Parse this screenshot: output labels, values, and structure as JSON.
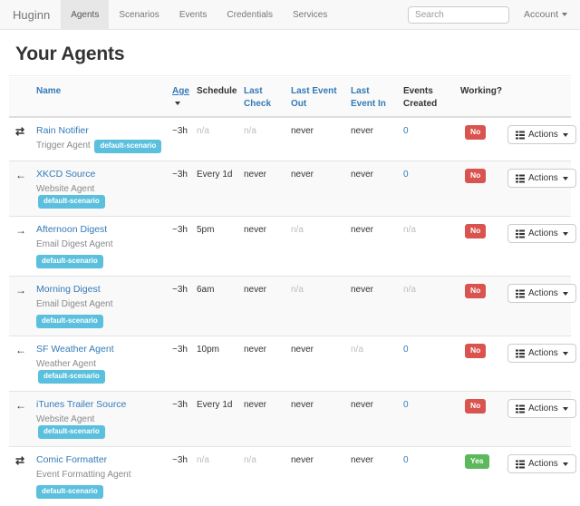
{
  "navbar": {
    "brand": "Huginn",
    "items": [
      {
        "label": "Agents",
        "active": true
      },
      {
        "label": "Scenarios",
        "active": false
      },
      {
        "label": "Events",
        "active": false
      },
      {
        "label": "Credentials",
        "active": false
      },
      {
        "label": "Services",
        "active": false
      }
    ],
    "search_placeholder": "Search",
    "account_label": "Account"
  },
  "page": {
    "title": "Your Agents"
  },
  "icons": {
    "exchange-icon": "⇄",
    "arrow-left-icon": "←",
    "arrow-right-icon": "→",
    "list-icon": "list",
    "caret-down-icon": "caret"
  },
  "colors": {
    "link_blue": "#337ab7",
    "badge_info": "#5bc0de",
    "badge_danger": "#d9534f",
    "badge_success": "#5cb85c",
    "navbar_bg": "#f8f8f8"
  },
  "table": {
    "headers": [
      {
        "label": "Name",
        "style": "link"
      },
      {
        "label": "Age",
        "style": "link",
        "sorted_desc": true
      },
      {
        "label": "Schedule",
        "style": "plain"
      },
      {
        "label": "Last Check",
        "style": "link"
      },
      {
        "label": "Last Event Out",
        "style": "link"
      },
      {
        "label": "Last Event In",
        "style": "link"
      },
      {
        "label": "Events Created",
        "style": "plain"
      },
      {
        "label": "Working?",
        "style": "plain"
      }
    ],
    "actions_label": "Actions",
    "rows": [
      {
        "icon": "exchange-icon",
        "name": "Rain Notifier",
        "type": "Trigger Agent",
        "scenario": "default-scenario",
        "scenario_inline": true,
        "age": {
          "t": "~3h",
          "s": "plain"
        },
        "schedule": {
          "t": "n/a",
          "s": "muted"
        },
        "last_check": {
          "t": "n/a",
          "s": "muted"
        },
        "last_event_out": {
          "t": "never",
          "s": "plain"
        },
        "last_event_in": {
          "t": "never",
          "s": "plain"
        },
        "events_created": {
          "t": "0",
          "s": "link"
        },
        "working": {
          "label": "No",
          "state": "no"
        }
      },
      {
        "icon": "arrow-left-icon",
        "name": "XKCD Source",
        "type": "Website Agent",
        "scenario": "default-scenario",
        "scenario_inline": true,
        "age": {
          "t": "~3h",
          "s": "plain"
        },
        "schedule": {
          "t": "Every 1d",
          "s": "plain"
        },
        "last_check": {
          "t": "never",
          "s": "plain"
        },
        "last_event_out": {
          "t": "never",
          "s": "plain"
        },
        "last_event_in": {
          "t": "never",
          "s": "plain"
        },
        "events_created": {
          "t": "0",
          "s": "link"
        },
        "working": {
          "label": "No",
          "state": "no"
        }
      },
      {
        "icon": "arrow-right-icon",
        "name": "Afternoon Digest",
        "type": "Email Digest Agent",
        "scenario": "default-scenario",
        "scenario_inline": false,
        "age": {
          "t": "~3h",
          "s": "plain"
        },
        "schedule": {
          "t": "5pm",
          "s": "plain"
        },
        "last_check": {
          "t": "never",
          "s": "plain"
        },
        "last_event_out": {
          "t": "n/a",
          "s": "muted"
        },
        "last_event_in": {
          "t": "never",
          "s": "plain"
        },
        "events_created": {
          "t": "n/a",
          "s": "muted"
        },
        "working": {
          "label": "No",
          "state": "no"
        }
      },
      {
        "icon": "arrow-right-icon",
        "name": "Morning Digest",
        "type": "Email Digest Agent",
        "scenario": "default-scenario",
        "scenario_inline": false,
        "age": {
          "t": "~3h",
          "s": "plain"
        },
        "schedule": {
          "t": "6am",
          "s": "plain"
        },
        "last_check": {
          "t": "never",
          "s": "plain"
        },
        "last_event_out": {
          "t": "n/a",
          "s": "muted"
        },
        "last_event_in": {
          "t": "never",
          "s": "plain"
        },
        "events_created": {
          "t": "n/a",
          "s": "muted"
        },
        "working": {
          "label": "No",
          "state": "no"
        }
      },
      {
        "icon": "arrow-left-icon",
        "name": "SF Weather Agent",
        "type": "Weather Agent",
        "scenario": "default-scenario",
        "scenario_inline": true,
        "age": {
          "t": "~3h",
          "s": "plain"
        },
        "schedule": {
          "t": "10pm",
          "s": "plain"
        },
        "last_check": {
          "t": "never",
          "s": "plain"
        },
        "last_event_out": {
          "t": "never",
          "s": "plain"
        },
        "last_event_in": {
          "t": "n/a",
          "s": "muted"
        },
        "events_created": {
          "t": "0",
          "s": "link"
        },
        "working": {
          "label": "No",
          "state": "no"
        }
      },
      {
        "icon": "arrow-left-icon",
        "name": "iTunes Trailer Source",
        "type": "Website Agent",
        "scenario": "default-scenario",
        "scenario_inline": true,
        "age": {
          "t": "~3h",
          "s": "plain"
        },
        "schedule": {
          "t": "Every 1d",
          "s": "plain"
        },
        "last_check": {
          "t": "never",
          "s": "plain"
        },
        "last_event_out": {
          "t": "never",
          "s": "plain"
        },
        "last_event_in": {
          "t": "never",
          "s": "plain"
        },
        "events_created": {
          "t": "0",
          "s": "link"
        },
        "working": {
          "label": "No",
          "state": "no"
        }
      },
      {
        "icon": "exchange-icon",
        "name": "Comic Formatter",
        "type": "Event Formatting Agent",
        "scenario": "default-scenario",
        "scenario_inline": false,
        "age": {
          "t": "~3h",
          "s": "plain"
        },
        "schedule": {
          "t": "n/a",
          "s": "muted"
        },
        "last_check": {
          "t": "n/a",
          "s": "muted"
        },
        "last_event_out": {
          "t": "never",
          "s": "plain"
        },
        "last_event_in": {
          "t": "never",
          "s": "plain"
        },
        "events_created": {
          "t": "0",
          "s": "link"
        },
        "working": {
          "label": "Yes",
          "state": "yes"
        }
      }
    ]
  }
}
